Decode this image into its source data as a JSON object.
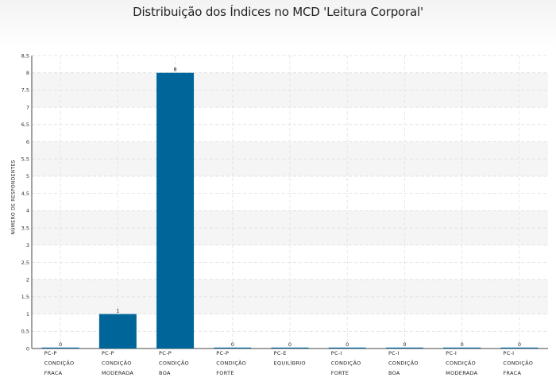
{
  "chart_data": {
    "type": "bar",
    "title": "Distribuição dos Índices no MCD 'Leitura Corporal'",
    "ylabel": "NÚMERO DE RESPONDENTES",
    "xlabel": "",
    "ylim": [
      0,
      8.5
    ],
    "ytick_step": 0.5,
    "yticks": [
      "0",
      "0,5",
      "1",
      "1,5",
      "2",
      "2,5",
      "3",
      "3,5",
      "4",
      "4,5",
      "5",
      "5,5",
      "6",
      "6,5",
      "7",
      "7,5",
      "8",
      "8,5"
    ],
    "categories": [
      [
        "PC-P",
        "CONDIÇÃO",
        "FRACA"
      ],
      [
        "PC-P",
        "CONDIÇÃO",
        "MODERADA"
      ],
      [
        "PC-P",
        "CONDIÇÃO",
        "BOA"
      ],
      [
        "PC-P",
        "CONDIÇÃO",
        "FORTE"
      ],
      [
        "PC-E",
        "EQUILÍBRIO"
      ],
      [
        "PC-I",
        "CONDIÇÃO",
        "FORTE"
      ],
      [
        "PC-I",
        "CONDIÇÃO",
        "BOA"
      ],
      [
        "PC-I",
        "CONDIÇÃO",
        "MODERADA"
      ],
      [
        "PC-I",
        "CONDIÇÃO",
        "FRACA"
      ]
    ],
    "values": [
      0,
      1,
      8,
      0,
      0,
      0,
      0,
      0,
      0
    ],
    "data_labels": [
      "0",
      "1",
      "8",
      "0",
      "0",
      "0",
      "0",
      "0",
      "0"
    ],
    "bar_color": "#006699",
    "grid": true
  }
}
